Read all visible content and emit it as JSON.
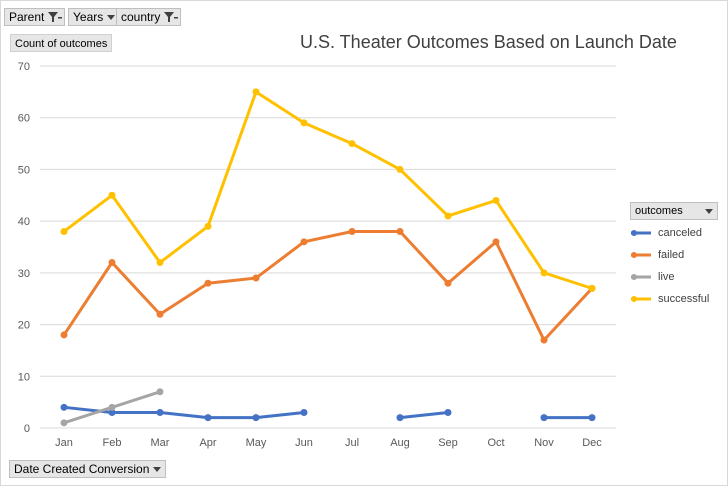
{
  "filters": [
    {
      "label": "Parent",
      "icon": "filter-icon"
    },
    {
      "label": "Years",
      "icon": "chevron-down-icon"
    },
    {
      "label": "country",
      "icon": "filter-icon"
    }
  ],
  "value_field_label": "Count of outcomes",
  "axis_field_label": "Date Created Conversion",
  "legend_header": "outcomes",
  "chart_data": {
    "type": "line",
    "title": "U.S. Theater Outcomes Based on Launch Date",
    "xlabel": "",
    "ylabel": "",
    "categories": [
      "Jan",
      "Feb",
      "Mar",
      "Apr",
      "May",
      "Jun",
      "Jul",
      "Aug",
      "Sep",
      "Oct",
      "Nov",
      "Dec"
    ],
    "ylim": [
      0,
      70
    ],
    "yticks": [
      0,
      10,
      20,
      30,
      40,
      50,
      60,
      70
    ],
    "grid": true,
    "legend_position": "right",
    "series": [
      {
        "name": "canceled",
        "color": "#4472c4",
        "values": [
          4,
          3,
          3,
          2,
          2,
          3,
          null,
          2,
          3,
          null,
          2,
          2
        ]
      },
      {
        "name": "failed",
        "color": "#ed7d31",
        "values": [
          18,
          32,
          22,
          28,
          29,
          36,
          38,
          38,
          28,
          36,
          17,
          27
        ]
      },
      {
        "name": "live",
        "color": "#a5a5a5",
        "values": [
          1,
          4,
          7,
          null,
          null,
          null,
          null,
          null,
          null,
          null,
          null,
          null
        ]
      },
      {
        "name": "successful",
        "color": "#ffc000",
        "values": [
          38,
          45,
          32,
          39,
          65,
          59,
          55,
          50,
          41,
          44,
          30,
          27
        ]
      }
    ]
  }
}
